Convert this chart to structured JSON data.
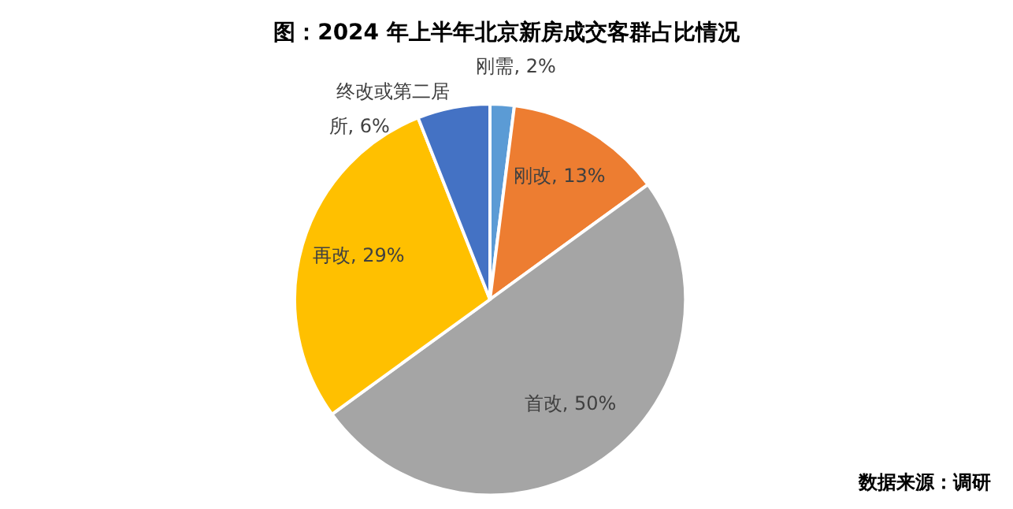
{
  "chart_data": {
    "type": "pie",
    "title": "图：2024 年上半年北京新房成交客群占比情况",
    "categories": [
      "刚需",
      "刚改",
      "首改",
      "再改",
      "终改或第二居所"
    ],
    "values": [
      2,
      13,
      50,
      29,
      6
    ],
    "value_labels": [
      "2%",
      "13%",
      "50%",
      "29%",
      "6%"
    ],
    "colors": [
      "#5b9bd5",
      "#ed7d31",
      "#a5a5a5",
      "#ffc000",
      "#4472c4"
    ],
    "annotations": [
      "数据来源：调研"
    ]
  }
}
